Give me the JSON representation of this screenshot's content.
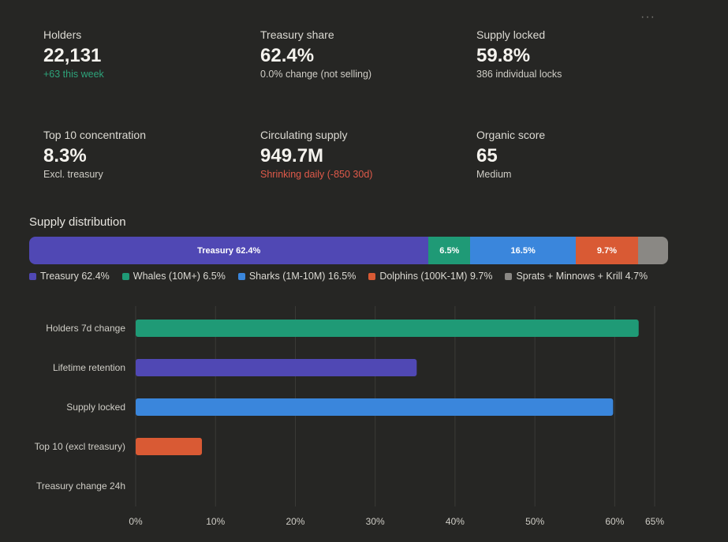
{
  "stats": {
    "holders": {
      "label": "Holders",
      "value": "22,131",
      "sub": "+63 this week"
    },
    "treasury_share": {
      "label": "Treasury share",
      "value": "62.4%",
      "sub": "0.0% change (not selling)"
    },
    "supply_locked": {
      "label": "Supply locked",
      "value": "59.8%",
      "sub": "386 individual locks"
    },
    "top10": {
      "label": "Top 10 concentration",
      "value": "8.3%",
      "sub": "Excl. treasury"
    },
    "circulating": {
      "label": "Circulating supply",
      "value": "949.7M",
      "sub": "Shrinking daily (-850 30d)"
    },
    "organic": {
      "label": "Organic score",
      "value": "65",
      "sub": "Medium"
    }
  },
  "more_icon": "more-horizontal-icon",
  "chart_data": [
    {
      "type": "bar",
      "orientation": "horizontal-stacked",
      "title": "Supply distribution",
      "segments": [
        {
          "name": "Treasury",
          "value": 62.4,
          "label": "Treasury 62.4%",
          "legend": "Treasury 62.4%",
          "color": "#5048b4"
        },
        {
          "name": "Whales (10M+)",
          "value": 6.5,
          "label": "6.5%",
          "legend": "Whales (10M+) 6.5%",
          "color": "#1f9a76"
        },
        {
          "name": "Sharks (1M-10M)",
          "value": 16.5,
          "label": "16.5%",
          "legend": "Sharks (1M-10M) 16.5%",
          "color": "#3a86dc"
        },
        {
          "name": "Dolphins (100K-1M)",
          "value": 9.7,
          "label": "9.7%",
          "legend": "Dolphins (100K-1M) 9.7%",
          "color": "#d95a34"
        },
        {
          "name": "Sprats + Minnows + Krill",
          "value": 4.7,
          "label": "",
          "legend": "Sprats + Minnows + Krill 4.7%",
          "color": "#8a8884"
        }
      ]
    },
    {
      "type": "bar",
      "orientation": "horizontal",
      "categories": [
        "Holders 7d change",
        "Lifetime retention",
        "Supply locked",
        "Top 10 (excl treasury)",
        "Treasury change 24h"
      ],
      "values": [
        63,
        35.2,
        59.8,
        8.3,
        0
      ],
      "colors": [
        "#1f9a76",
        "#5048b4",
        "#3a86dc",
        "#d95a34",
        "#8a8884"
      ],
      "xlim": [
        0,
        65
      ],
      "xticks": [
        0,
        10,
        20,
        30,
        40,
        50,
        60,
        65
      ],
      "xtick_labels": [
        "0%",
        "10%",
        "20%",
        "30%",
        "40%",
        "50%",
        "60%",
        "65%"
      ],
      "grid": true
    }
  ]
}
